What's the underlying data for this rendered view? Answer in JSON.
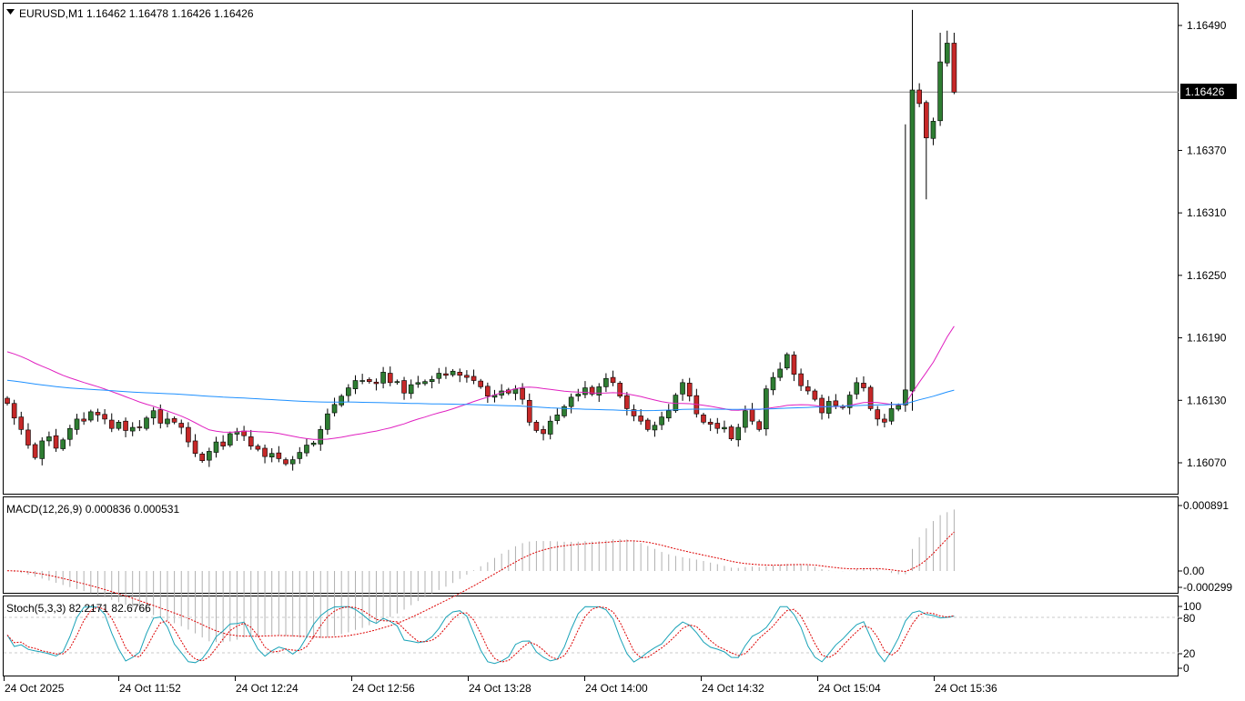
{
  "main_panel": {
    "title": "EURUSD,M1  1.16462 1.16478 1.16426 1.16426",
    "price_ticks": [
      "1.16490",
      "1.16370",
      "1.16310",
      "1.16250",
      "1.16190",
      "1.16130",
      "1.16070"
    ],
    "current_price_label": "1.16426"
  },
  "macd_panel": {
    "title": "MACD(12,26,9) 0.000836 0.000531",
    "ticks": [
      "0.000891",
      "0.00",
      "-0.000299"
    ]
  },
  "stoch_panel": {
    "title": "Stoch(5,3,3) 82.2171 82.6766",
    "ticks": [
      "100",
      "80",
      "20",
      "0"
    ]
  },
  "time_axis": {
    "labels": [
      "24 Oct 2025",
      "24 Oct 11:52",
      "24 Oct 12:24",
      "24 Oct 12:56",
      "24 Oct 13:28",
      "24 Oct 14:00",
      "24 Oct 14:32",
      "24 Oct 15:04",
      "24 Oct 15:36"
    ]
  },
  "colors": {
    "bull_body": "#2e7d32",
    "bear_body": "#c62828",
    "ma_slow": "#1e90ff",
    "ma_fast": "#e020c0",
    "signal": "#dd0000",
    "stoch_main": "#1aa3b8",
    "histogram": "#b0b0b0",
    "grid": "#c8c8c8"
  },
  "chart_data": [
    {
      "type": "candlestick",
      "symbol": "EURUSD",
      "timeframe": "M1",
      "ylim": [
        1.16045,
        1.16505
      ],
      "close": [
        1.16127,
        1.16113,
        1.16102,
        1.16087,
        1.16075,
        1.16091,
        1.16095,
        1.16084,
        1.16092,
        1.16103,
        1.16112,
        1.1611,
        1.16119,
        1.16116,
        1.16112,
        1.16103,
        1.16109,
        1.16101,
        1.16104,
        1.16104,
        1.16113,
        1.1612,
        1.16108,
        1.16112,
        1.16109,
        1.16104,
        1.1609,
        1.16079,
        1.16072,
        1.16081,
        1.1609,
        1.16086,
        1.16098,
        1.161,
        1.16096,
        1.16086,
        1.16083,
        1.16076,
        1.16079,
        1.16074,
        1.16069,
        1.16073,
        1.1608,
        1.16087,
        1.16089,
        1.16102,
        1.16117,
        1.16126,
        1.16134,
        1.16142,
        1.16149,
        1.16149,
        1.16148,
        1.16146,
        1.16157,
        1.16147,
        1.16148,
        1.16137,
        1.16145,
        1.16147,
        1.16148,
        1.1615,
        1.16156,
        1.16154,
        1.16158,
        1.16154,
        1.16152,
        1.16149,
        1.16143,
        1.16134,
        1.16135,
        1.16139,
        1.16137,
        1.16141,
        1.16131,
        1.16109,
        1.16101,
        1.16098,
        1.1611,
        1.16116,
        1.16124,
        1.16133,
        1.16136,
        1.16142,
        1.16136,
        1.16143,
        1.16151,
        1.16147,
        1.16134,
        1.16122,
        1.16115,
        1.1611,
        1.16102,
        1.16106,
        1.16114,
        1.1612,
        1.16135,
        1.16147,
        1.16134,
        1.16117,
        1.16109,
        1.16107,
        1.16103,
        1.16104,
        1.16093,
        1.16104,
        1.1612,
        1.1611,
        1.16102,
        1.16141,
        1.16152,
        1.1616,
        1.16174,
        1.16155,
        1.16144,
        1.16139,
        1.16131,
        1.16118,
        1.16129,
        1.16125,
        1.16123,
        1.16135,
        1.16147,
        1.16142,
        1.16122,
        1.16112,
        1.16109,
        1.16122,
        1.16125,
        1.1614,
        1.16428,
        1.16415,
        1.16382,
        1.16398,
        1.16455,
        1.16473,
        1.16426
      ],
      "high_low": "wicks drawn from OHLC",
      "series": [
        {
          "name": "",
          "kind": "moving_average_fast"
        },
        {
          "name": "",
          "kind": "moving_average_slow"
        }
      ]
    },
    {
      "type": "bar",
      "indicator": "MACD(12,26,9)",
      "main": 0.000836,
      "signal": 0.000531,
      "ylim": [
        -0.000299,
        0.000891
      ]
    },
    {
      "type": "line",
      "indicator": "Stoch(5,3,3)",
      "main": 82.2171,
      "signal": 82.6766,
      "ylim": [
        0,
        100
      ],
      "levels": [
        20,
        80
      ]
    }
  ]
}
